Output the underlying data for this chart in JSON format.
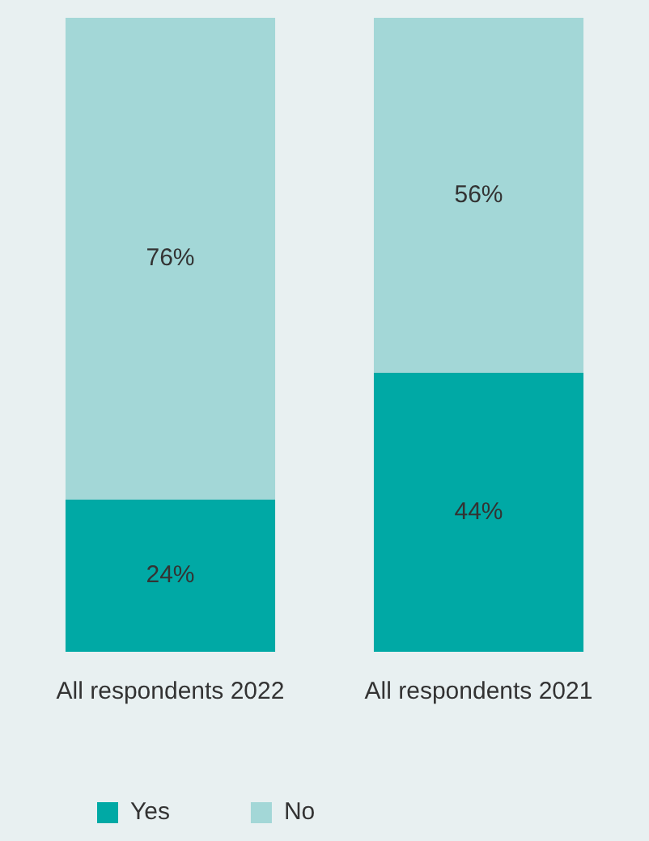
{
  "chart_data": {
    "type": "bar",
    "stacked": true,
    "categories": [
      "All respondents 2022",
      "All respondents 2021"
    ],
    "series": [
      {
        "name": "Yes",
        "color": "#00a9a5",
        "values": [
          24,
          44
        ],
        "value_labels": [
          "24%",
          "44%"
        ]
      },
      {
        "name": "No",
        "color": "#a3d7d7",
        "values": [
          76,
          56
        ],
        "value_labels": [
          "76%",
          "56%"
        ]
      }
    ],
    "legend": "bottom left",
    "grid": false
  }
}
